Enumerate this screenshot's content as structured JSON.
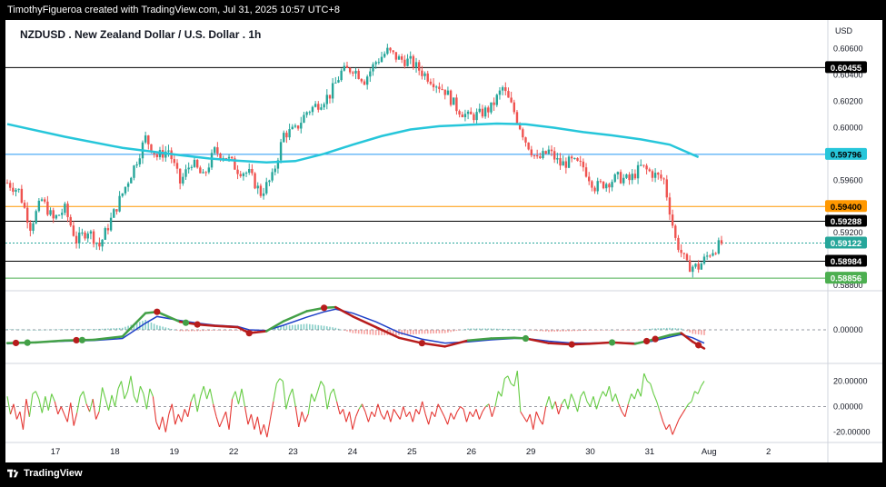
{
  "header": {
    "attribution": "TimothyFigueroa created with TradingView.com, Jul 31, 2025 10:57 UTC+8"
  },
  "footer": {
    "brand": "TradingView"
  },
  "chart_data": [
    {
      "type": "candlestick",
      "title": "NZDUSD . New Zealand Dollar / U.S. Dollar . 1h",
      "currency_label": "USD",
      "x_ticks": [
        "17",
        "18",
        "19",
        "22",
        "23",
        "24",
        "25",
        "26",
        "29",
        "30",
        "31",
        "Aug",
        "2"
      ],
      "y_ticks": [
        "0.60600",
        "0.60400",
        "0.60200",
        "0.60000",
        "0.59800",
        "0.59600",
        "0.59400",
        "0.59200",
        "0.59000",
        "0.58800"
      ],
      "ylim": [
        0.5876,
        0.6072
      ],
      "close_path": [
        [
          0,
          0.5958
        ],
        [
          4,
          0.5952
        ],
        [
          8,
          0.5925
        ],
        [
          12,
          0.5945
        ],
        [
          16,
          0.593
        ],
        [
          20,
          0.5938
        ],
        [
          24,
          0.5914
        ],
        [
          28,
          0.5922
        ],
        [
          32,
          0.591
        ],
        [
          36,
          0.593
        ],
        [
          40,
          0.595
        ],
        [
          44,
          0.597
        ],
        [
          48,
          0.5992
        ],
        [
          52,
          0.5978
        ],
        [
          56,
          0.5983
        ],
        [
          60,
          0.5958
        ],
        [
          64,
          0.5974
        ],
        [
          68,
          0.5962
        ],
        [
          72,
          0.5982
        ],
        [
          76,
          0.5978
        ],
        [
          80,
          0.5968
        ],
        [
          84,
          0.5965
        ],
        [
          88,
          0.595
        ],
        [
          92,
          0.5962
        ],
        [
          96,
          0.5995
        ],
        [
          100,
          0.5998
        ],
        [
          104,
          0.6012
        ],
        [
          108,
          0.6018
        ],
        [
          112,
          0.6025
        ],
        [
          116,
          0.6042
        ],
        [
          120,
          0.6045
        ],
        [
          124,
          0.6036
        ],
        [
          128,
          0.605
        ],
        [
          132,
          0.6058
        ],
        [
          136,
          0.6052
        ],
        [
          140,
          0.605
        ],
        [
          144,
          0.6042
        ],
        [
          148,
          0.6035
        ],
        [
          152,
          0.6028
        ],
        [
          156,
          0.6015
        ],
        [
          160,
          0.6008
        ],
        [
          164,
          0.601
        ],
        [
          168,
          0.6015
        ],
        [
          172,
          0.603
        ],
        [
          176,
          0.6012
        ],
        [
          180,
          0.599
        ],
        [
          184,
          0.5975
        ],
        [
          188,
          0.5982
        ],
        [
          192,
          0.5972
        ],
        [
          196,
          0.5974
        ],
        [
          200,
          0.597
        ],
        [
          204,
          0.5955
        ],
        [
          208,
          0.5958
        ],
        [
          212,
          0.5962
        ],
        [
          216,
          0.596
        ],
        [
          220,
          0.597
        ],
        [
          224,
          0.5965
        ],
        [
          228,
          0.596
        ],
        [
          232,
          0.5915
        ],
        [
          236,
          0.5895
        ],
        [
          240,
          0.5894
        ],
        [
          244,
          0.5905
        ],
        [
          248,
          0.5912
        ]
      ],
      "series": [
        {
          "name": "MA",
          "color": "#26c6da",
          "points": [
            [
              0,
              0.60026
            ],
            [
              20,
              0.5993
            ],
            [
              40,
              0.59845
            ],
            [
              60,
              0.5979
            ],
            [
              70,
              0.59765
            ],
            [
              80,
              0.59748
            ],
            [
              90,
              0.59735
            ],
            [
              100,
              0.59745
            ],
            [
              110,
              0.598
            ],
            [
              120,
              0.5987
            ],
            [
              130,
              0.59935
            ],
            [
              140,
              0.59985
            ],
            [
              150,
              0.6001
            ],
            [
              160,
              0.6002
            ],
            [
              170,
              0.6003
            ],
            [
              180,
              0.60025
            ],
            [
              190,
              0.59998
            ],
            [
              200,
              0.59965
            ],
            [
              210,
              0.5994
            ],
            [
              220,
              0.5991
            ],
            [
              230,
              0.5987
            ],
            [
              240,
              0.59775
            ]
          ]
        }
      ],
      "horizontal_levels": [
        {
          "value": 0.60455,
          "label": "0.60455",
          "line_color": "#000000",
          "tag_bg": "#000000",
          "tag_fg": "#ffffff"
        },
        {
          "value": 0.59796,
          "label": "0.59796",
          "line_color": "#2196f3",
          "tag_bg": "#26c6da",
          "tag_fg": "#000000"
        },
        {
          "value": 0.594,
          "label": "0.59400",
          "line_color": "#ff9800",
          "tag_bg": "#ff9800",
          "tag_fg": "#000000"
        },
        {
          "value": 0.59288,
          "label": "0.59288",
          "line_color": "#000000",
          "tag_bg": "#000000",
          "tag_fg": "#ffffff"
        },
        {
          "value": 0.59122,
          "label": "0.59122",
          "line_color": "#26a69a",
          "dashed": true,
          "tag_bg": "#26a69a",
          "tag_fg": "#ffffff"
        },
        {
          "value": 0.58984,
          "label": "0.58984",
          "line_color": "#000000",
          "tag_bg": "#000000",
          "tag_fg": "#ffffff"
        },
        {
          "value": 0.58856,
          "label": "0.58856",
          "line_color": "#4caf50",
          "tag_bg": "#4caf50",
          "tag_fg": "#ffffff"
        }
      ]
    },
    {
      "type": "macd",
      "y_ticks": [
        "0.00000"
      ],
      "zero_level": 0,
      "ylim": [
        -0.0045,
        0.0045
      ],
      "cross_points": [
        {
          "t": 3,
          "color": "#b71c1c"
        },
        {
          "t": 7,
          "color": "#43a047"
        },
        {
          "t": 24,
          "color": "#b71c1c"
        },
        {
          "t": 26,
          "color": "#43a047"
        },
        {
          "t": 52,
          "color": "#b71c1c"
        },
        {
          "t": 62,
          "color": "#43a047"
        },
        {
          "t": 66,
          "color": "#b71c1c"
        },
        {
          "t": 84,
          "color": "#b71c1c"
        },
        {
          "t": 110,
          "color": "#b71c1c"
        },
        {
          "t": 144,
          "color": "#b71c1c"
        },
        {
          "t": 180,
          "color": "#43a047"
        },
        {
          "t": 196,
          "color": "#b71c1c"
        },
        {
          "t": 210,
          "color": "#43a047"
        },
        {
          "t": 222,
          "color": "#b71c1c"
        },
        {
          "t": 225,
          "color": "#b71c1c"
        },
        {
          "t": 240,
          "color": "#b71c1c"
        }
      ],
      "series": [
        {
          "name": "MACD",
          "color": "#43a047",
          "points": [
            [
              0,
              -0.002
            ],
            [
              10,
              -0.0019
            ],
            [
              20,
              -0.0016
            ],
            [
              30,
              -0.0015
            ],
            [
              40,
              -0.001
            ],
            [
              48,
              0.0025
            ],
            [
              52,
              0.0027
            ],
            [
              60,
              0.0012
            ],
            [
              66,
              0.0008
            ],
            [
              72,
              0.0006
            ],
            [
              80,
              0.0004
            ],
            [
              84,
              -0.0005
            ],
            [
              90,
              -0.0002
            ],
            [
              96,
              0.0013
            ],
            [
              104,
              0.0028
            ],
            [
              110,
              0.0033
            ],
            [
              114,
              0.0034
            ],
            [
              120,
              0.002
            ],
            [
              128,
              0.0004
            ],
            [
              136,
              -0.0012
            ],
            [
              144,
              -0.002
            ],
            [
              152,
              -0.0025
            ],
            [
              160,
              -0.0016
            ],
            [
              168,
              -0.0013
            ],
            [
              176,
              -0.0012
            ],
            [
              180,
              -0.0013
            ],
            [
              188,
              -0.002
            ],
            [
              196,
              -0.0022
            ],
            [
              202,
              -0.0021
            ],
            [
              210,
              -0.0019
            ],
            [
              218,
              -0.0021
            ],
            [
              224,
              -0.0015
            ],
            [
              230,
              -0.0008
            ],
            [
              234,
              -0.0005
            ],
            [
              238,
              -0.0018
            ],
            [
              242,
              -0.0028
            ]
          ]
        },
        {
          "name": "Signal",
          "color": "#1e40c8",
          "points": [
            [
              0,
              -0.0021
            ],
            [
              10,
              -0.0019
            ],
            [
              20,
              -0.0017
            ],
            [
              30,
              -0.0016
            ],
            [
              40,
              -0.0013
            ],
            [
              48,
              0.001
            ],
            [
              52,
              0.002
            ],
            [
              60,
              0.0014
            ],
            [
              66,
              0.001
            ],
            [
              72,
              0.0007
            ],
            [
              80,
              0.0005
            ],
            [
              84,
              0.0
            ],
            [
              90,
              -0.0001
            ],
            [
              96,
              0.0007
            ],
            [
              104,
              0.0019
            ],
            [
              110,
              0.0027
            ],
            [
              114,
              0.0031
            ],
            [
              120,
              0.0025
            ],
            [
              128,
              0.0012
            ],
            [
              136,
              -0.0004
            ],
            [
              144,
              -0.0014
            ],
            [
              152,
              -0.002
            ],
            [
              160,
              -0.0018
            ],
            [
              168,
              -0.0015
            ],
            [
              176,
              -0.0013
            ],
            [
              180,
              -0.0013
            ],
            [
              188,
              -0.0017
            ],
            [
              196,
              -0.002
            ],
            [
              202,
              -0.002
            ],
            [
              210,
              -0.0019
            ],
            [
              218,
              -0.002
            ],
            [
              224,
              -0.0017
            ],
            [
              230,
              -0.0011
            ],
            [
              234,
              -0.0007
            ],
            [
              238,
              -0.0012
            ],
            [
              242,
              -0.002
            ]
          ]
        }
      ]
    },
    {
      "type": "line",
      "name": "oscillator",
      "y_ticks": [
        "20.00000",
        "0.00000",
        "-20.00000"
      ],
      "ylim": [
        -26,
        31
      ],
      "zero_level": 0,
      "color_above": "#66cc44",
      "color_below": "#e53935",
      "values": [
        8,
        -6,
        2,
        -10,
        -4,
        -18,
        6,
        -8,
        10,
        12,
        6,
        -5,
        8,
        -3,
        10,
        4,
        -6,
        0,
        -6,
        -12,
        3,
        -15,
        -5,
        8,
        12,
        2,
        -4,
        6,
        -10,
        -4,
        15,
        6,
        -3,
        9,
        0,
        14,
        20,
        6,
        12,
        24,
        8,
        3,
        16,
        10,
        -2,
        14,
        8,
        -12,
        -18,
        -8,
        -20,
        -6,
        2,
        -14,
        -6,
        -12,
        -2,
        -8,
        4,
        10,
        -4,
        8,
        16,
        6,
        14,
        2,
        -8,
        -16,
        -10,
        -4,
        -18,
        6,
        12,
        2,
        14,
        0,
        -14,
        -6,
        -18,
        -8,
        -22,
        -14,
        -24,
        -10,
        4,
        18,
        22,
        20,
        -2,
        8,
        14,
        0,
        -16,
        -4,
        -12,
        -6,
        10,
        4,
        12,
        20,
        16,
        -2,
        10,
        14,
        4,
        -6,
        -2,
        -12,
        -4,
        -18,
        -8,
        -2,
        2,
        -4,
        -12,
        -4,
        -8,
        2,
        -6,
        -10,
        -3,
        -12,
        -2,
        -6,
        -10,
        0,
        -8,
        -4,
        -12,
        -2,
        -6,
        4,
        -6,
        -14,
        -4,
        -8,
        2,
        -3,
        -8,
        -14,
        -5,
        -10,
        -4,
        0,
        -2,
        -12,
        -4,
        -8,
        -2,
        -10,
        -4,
        0,
        2,
        -8,
        0,
        12,
        8,
        22,
        24,
        18,
        16,
        28,
        -4,
        -8,
        -12,
        -6,
        -18,
        -4,
        -10,
        -14,
        0,
        8,
        -2,
        4,
        -6,
        2,
        6,
        -2,
        10,
        4,
        -4,
        8,
        12,
        4,
        0,
        8,
        -2,
        6,
        12,
        8,
        16,
        4,
        10,
        2,
        -4,
        -8,
        2,
        10,
        6,
        14,
        8,
        26,
        20,
        18,
        10,
        4,
        -4,
        -12,
        -18,
        -14,
        -22,
        -16,
        -10,
        -6,
        -2,
        2,
        4,
        12,
        10,
        16,
        20
      ]
    }
  ]
}
